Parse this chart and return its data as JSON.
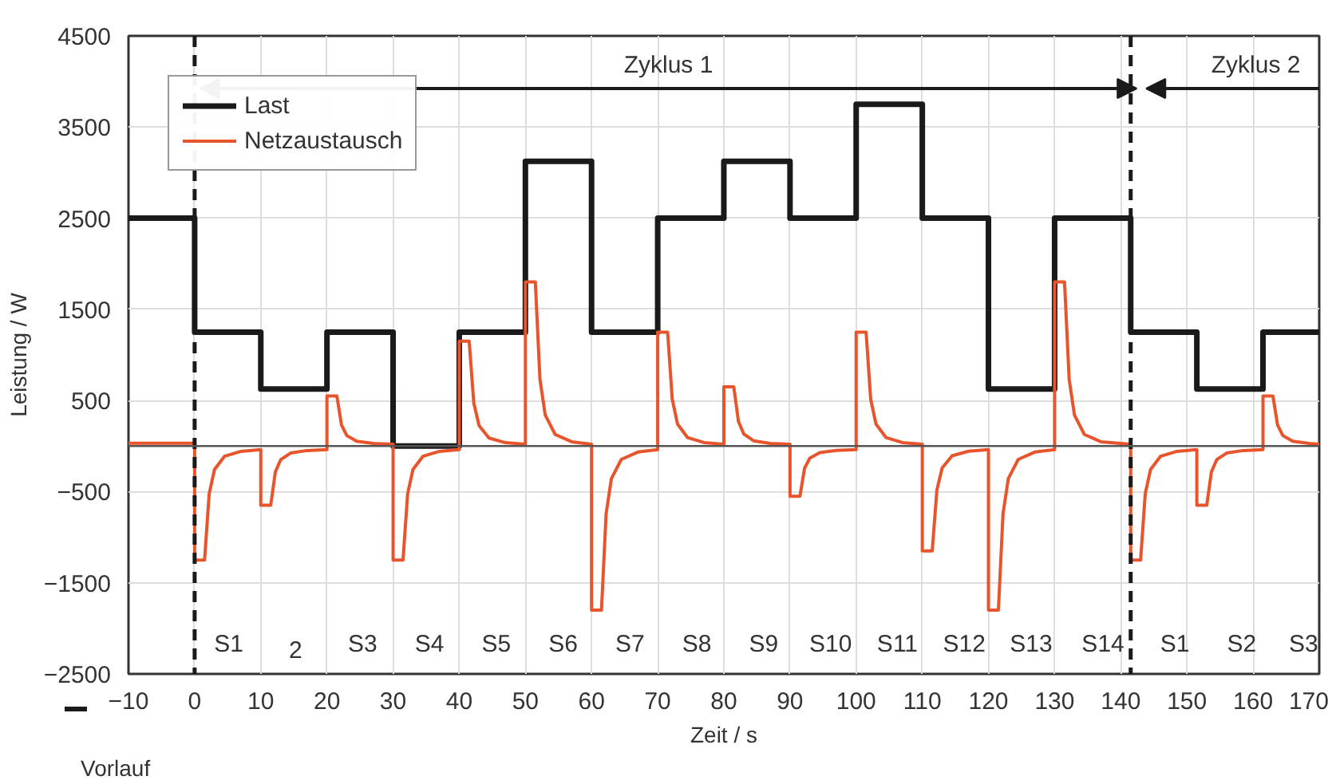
{
  "chart_data": {
    "type": "line",
    "xlabel": "Zeit / s",
    "ylabel": "Leistung / W",
    "xlim": [
      -10,
      170
    ],
    "xticks": [
      -10,
      0,
      10,
      20,
      30,
      40,
      50,
      60,
      70,
      80,
      90,
      100,
      110,
      120,
      130,
      140,
      150,
      160,
      170
    ],
    "ylim": [
      -2500,
      4500
    ],
    "yticks": [
      -2500,
      -1500,
      -500,
      500,
      1500,
      2500,
      3500,
      4500
    ],
    "grid": true,
    "legend": "top left",
    "line_style": "solid",
    "series": [
      {
        "name": "Last",
        "type": "step",
        "color": "#1a1a1a",
        "x": [
          -10,
          0,
          10,
          20,
          30,
          40,
          50,
          60,
          70,
          80,
          90,
          100,
          110,
          120,
          130,
          141.5,
          151.5,
          161.5,
          170
        ],
        "values": [
          2500,
          1250,
          625,
          1250,
          0,
          1250,
          3125,
          1250,
          2500,
          3125,
          2500,
          3750,
          2500,
          625,
          2500,
          1250,
          625,
          1250,
          1250
        ]
      },
      {
        "name": "Netzaustausch",
        "color": "#e8542c",
        "x": [
          -10,
          0,
          0,
          1.5,
          2.2,
          3,
          4.5,
          7,
          10,
          10,
          11.5,
          12.2,
          13,
          14.5,
          17,
          20,
          20,
          21.5,
          22.2,
          23,
          24.5,
          27,
          30,
          30,
          31.5,
          32.2,
          33,
          34.5,
          37,
          40,
          40,
          41.5,
          42.2,
          43,
          44.5,
          47,
          50,
          50,
          51.5,
          52.2,
          53,
          54.5,
          57,
          60,
          60,
          61.5,
          62.2,
          63,
          64.5,
          67,
          70,
          70,
          71.5,
          72.2,
          73,
          74.5,
          77,
          80,
          80,
          81.5,
          82.2,
          83,
          84.5,
          87,
          90,
          90,
          91.5,
          92.2,
          93,
          94.5,
          97,
          100,
          100,
          101.5,
          102.2,
          103,
          104.5,
          107,
          110,
          110,
          111.5,
          112.2,
          113,
          114.5,
          117,
          120,
          120,
          121.5,
          122.2,
          123,
          124.5,
          127,
          130,
          130,
          131.5,
          132.2,
          133,
          134.5,
          137,
          141.5,
          141.5,
          143,
          143.7,
          144.5,
          146,
          148.5,
          151.5,
          151.5,
          153,
          153.7,
          154.5,
          156,
          158.5,
          161.5,
          161.5,
          163,
          163.7,
          164.5,
          166,
          168.5,
          170
        ],
        "values": [
          30,
          30,
          -1250,
          -1250,
          -524,
          -258,
          -113,
          -58,
          -40,
          -650,
          -650,
          -284,
          -150,
          -77,
          -49,
          -40,
          550,
          550,
          232,
          115,
          52,
          28,
          20,
          -1250,
          -1250,
          -524,
          -258,
          -113,
          -58,
          -40,
          1150,
          1150,
          472,
          223,
          88,
          37,
          20,
          1800,
          1800,
          732,
          340,
          127,
          47,
          20,
          -1800,
          -1800,
          -744,
          -357,
          -146,
          -66,
          -40,
          1250,
          1250,
          512,
          241,
          94,
          38,
          20,
          650,
          650,
          272,
          133,
          58,
          29,
          20,
          -550,
          -550,
          -244,
          -132,
          -71,
          -48,
          -40,
          1250,
          1250,
          512,
          241,
          94,
          38,
          20,
          -1150,
          -1150,
          -484,
          -240,
          -107,
          -57,
          -40,
          -1800,
          -1800,
          -744,
          -357,
          -146,
          -66,
          -40,
          1800,
          1800,
          732,
          340,
          127,
          47,
          20,
          -1250,
          -1250,
          -524,
          -258,
          -113,
          -58,
          -40,
          -650,
          -650,
          -284,
          -150,
          -77,
          -49,
          -40,
          550,
          550,
          232,
          115,
          52,
          28,
          20
        ]
      }
    ],
    "ref_lines": [
      {
        "axis": "x",
        "value": 0,
        "label": null,
        "color": "#1a1a1a",
        "line_style": "dashed"
      },
      {
        "axis": "x",
        "value": 141.5,
        "label": null,
        "color": "#1a1a1a",
        "line_style": "dashed"
      },
      {
        "axis": "y",
        "value": 0,
        "label": null,
        "color": "#555555",
        "line_style": "solid"
      }
    ],
    "annotations": [
      "Zyklus 1",
      "Zyklus 2",
      "Vorlauf",
      "S1",
      "2",
      "S3",
      "S4",
      "S5",
      "S6",
      "S7",
      "S8",
      "S9",
      "S10",
      "S11",
      "S12",
      "S13",
      "S14",
      "S1",
      "S2",
      "S3"
    ]
  }
}
